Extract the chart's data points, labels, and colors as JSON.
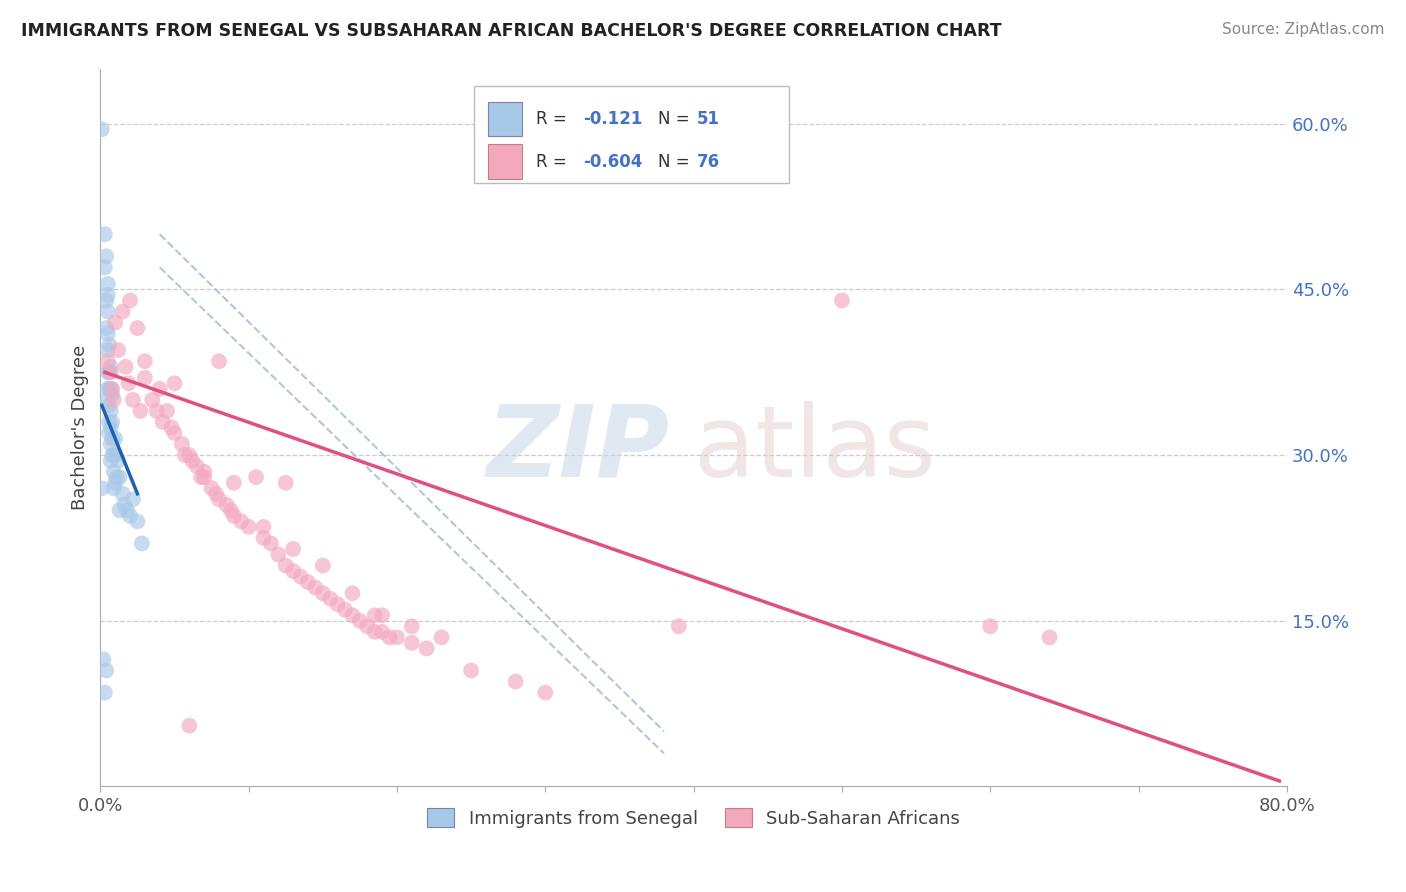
{
  "title": "IMMIGRANTS FROM SENEGAL VS SUBSAHARAN AFRICAN BACHELOR'S DEGREE CORRELATION CHART",
  "source": "Source: ZipAtlas.com",
  "ylabel": "Bachelor's Degree",
  "xlim": [
    0.0,
    0.8
  ],
  "ylim": [
    0.0,
    0.65
  ],
  "y_ticks_right": [
    0.15,
    0.3,
    0.45,
    0.6
  ],
  "y_tick_labels_right": [
    "15.0%",
    "30.0%",
    "45.0%",
    "60.0%"
  ],
  "color_blue": "#a8c8e8",
  "color_pink": "#f4a8be",
  "color_blue_line": "#2060b0",
  "color_pink_line": "#e05080",
  "color_dashed": "#a0b8d0",
  "watermark_zip": "ZIP",
  "watermark_atlas": "atlas",
  "blue_dots": [
    [
      0.001,
      0.595
    ],
    [
      0.003,
      0.5
    ],
    [
      0.003,
      0.47
    ],
    [
      0.004,
      0.48
    ],
    [
      0.004,
      0.44
    ],
    [
      0.004,
      0.415
    ],
    [
      0.005,
      0.455
    ],
    [
      0.005,
      0.445
    ],
    [
      0.005,
      0.43
    ],
    [
      0.005,
      0.41
    ],
    [
      0.005,
      0.395
    ],
    [
      0.005,
      0.375
    ],
    [
      0.005,
      0.36
    ],
    [
      0.005,
      0.35
    ],
    [
      0.006,
      0.4
    ],
    [
      0.006,
      0.375
    ],
    [
      0.006,
      0.36
    ],
    [
      0.006,
      0.345
    ],
    [
      0.006,
      0.33
    ],
    [
      0.006,
      0.32
    ],
    [
      0.007,
      0.38
    ],
    [
      0.007,
      0.36
    ],
    [
      0.007,
      0.34
    ],
    [
      0.007,
      0.325
    ],
    [
      0.007,
      0.31
    ],
    [
      0.007,
      0.295
    ],
    [
      0.008,
      0.355
    ],
    [
      0.008,
      0.33
    ],
    [
      0.008,
      0.315
    ],
    [
      0.008,
      0.3
    ],
    [
      0.009,
      0.3
    ],
    [
      0.009,
      0.285
    ],
    [
      0.009,
      0.27
    ],
    [
      0.01,
      0.315
    ],
    [
      0.01,
      0.3
    ],
    [
      0.01,
      0.275
    ],
    [
      0.011,
      0.28
    ],
    [
      0.012,
      0.295
    ],
    [
      0.013,
      0.28
    ],
    [
      0.013,
      0.25
    ],
    [
      0.015,
      0.265
    ],
    [
      0.016,
      0.255
    ],
    [
      0.018,
      0.25
    ],
    [
      0.02,
      0.245
    ],
    [
      0.022,
      0.26
    ],
    [
      0.025,
      0.24
    ],
    [
      0.028,
      0.22
    ],
    [
      0.002,
      0.115
    ],
    [
      0.003,
      0.085
    ],
    [
      0.004,
      0.105
    ],
    [
      0.001,
      0.27
    ]
  ],
  "pink_dots": [
    [
      0.005,
      0.385
    ],
    [
      0.007,
      0.375
    ],
    [
      0.008,
      0.36
    ],
    [
      0.009,
      0.35
    ],
    [
      0.01,
      0.42
    ],
    [
      0.012,
      0.395
    ],
    [
      0.015,
      0.43
    ],
    [
      0.017,
      0.38
    ],
    [
      0.019,
      0.365
    ],
    [
      0.02,
      0.44
    ],
    [
      0.022,
      0.35
    ],
    [
      0.025,
      0.415
    ],
    [
      0.027,
      0.34
    ],
    [
      0.03,
      0.385
    ],
    [
      0.03,
      0.37
    ],
    [
      0.035,
      0.35
    ],
    [
      0.038,
      0.34
    ],
    [
      0.04,
      0.36
    ],
    [
      0.042,
      0.33
    ],
    [
      0.045,
      0.34
    ],
    [
      0.048,
      0.325
    ],
    [
      0.05,
      0.365
    ],
    [
      0.05,
      0.32
    ],
    [
      0.055,
      0.31
    ],
    [
      0.057,
      0.3
    ],
    [
      0.06,
      0.3
    ],
    [
      0.06,
      0.055
    ],
    [
      0.062,
      0.295
    ],
    [
      0.065,
      0.29
    ],
    [
      0.068,
      0.28
    ],
    [
      0.07,
      0.285
    ],
    [
      0.07,
      0.28
    ],
    [
      0.075,
      0.27
    ],
    [
      0.078,
      0.265
    ],
    [
      0.08,
      0.385
    ],
    [
      0.08,
      0.26
    ],
    [
      0.085,
      0.255
    ],
    [
      0.088,
      0.25
    ],
    [
      0.09,
      0.275
    ],
    [
      0.09,
      0.245
    ],
    [
      0.095,
      0.24
    ],
    [
      0.1,
      0.235
    ],
    [
      0.105,
      0.28
    ],
    [
      0.11,
      0.235
    ],
    [
      0.11,
      0.225
    ],
    [
      0.115,
      0.22
    ],
    [
      0.12,
      0.21
    ],
    [
      0.125,
      0.275
    ],
    [
      0.125,
      0.2
    ],
    [
      0.13,
      0.215
    ],
    [
      0.13,
      0.195
    ],
    [
      0.135,
      0.19
    ],
    [
      0.14,
      0.185
    ],
    [
      0.145,
      0.18
    ],
    [
      0.15,
      0.2
    ],
    [
      0.15,
      0.175
    ],
    [
      0.155,
      0.17
    ],
    [
      0.16,
      0.165
    ],
    [
      0.165,
      0.16
    ],
    [
      0.17,
      0.175
    ],
    [
      0.17,
      0.155
    ],
    [
      0.175,
      0.15
    ],
    [
      0.18,
      0.145
    ],
    [
      0.185,
      0.155
    ],
    [
      0.185,
      0.14
    ],
    [
      0.19,
      0.155
    ],
    [
      0.19,
      0.14
    ],
    [
      0.195,
      0.135
    ],
    [
      0.2,
      0.135
    ],
    [
      0.21,
      0.145
    ],
    [
      0.21,
      0.13
    ],
    [
      0.22,
      0.125
    ],
    [
      0.23,
      0.135
    ],
    [
      0.25,
      0.105
    ],
    [
      0.28,
      0.095
    ],
    [
      0.3,
      0.085
    ],
    [
      0.39,
      0.145
    ],
    [
      0.5,
      0.44
    ],
    [
      0.6,
      0.145
    ],
    [
      0.64,
      0.135
    ]
  ],
  "blue_line_x": [
    0.001,
    0.025
  ],
  "pink_line_x": [
    0.003,
    0.795
  ],
  "blue_line_y_start": 0.345,
  "blue_line_y_end": 0.265,
  "pink_line_y_start": 0.375,
  "pink_line_y_end": 0.005,
  "dashed_line1": [
    [
      0.04,
      0.47
    ],
    [
      0.38,
      0.03
    ]
  ],
  "dashed_line2": [
    [
      0.04,
      0.5
    ],
    [
      0.38,
      0.05
    ]
  ]
}
